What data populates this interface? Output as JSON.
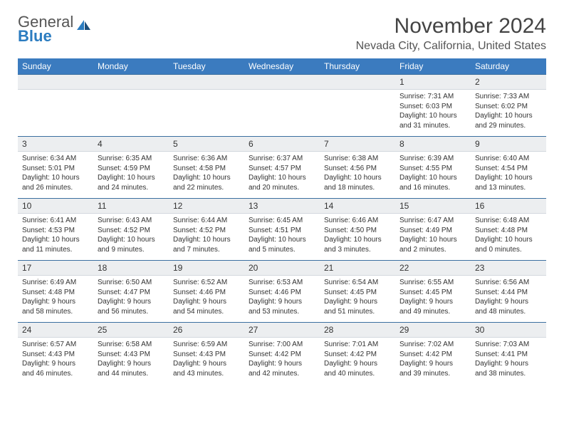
{
  "logo": {
    "text1": "General",
    "text2": "Blue"
  },
  "title": "November 2024",
  "location": "Nevada City, California, United States",
  "colors": {
    "header_bg": "#3b7bbf",
    "header_text": "#ffffff",
    "daynum_bg": "#eceef0",
    "border_top": "#3b6fa0",
    "text": "#333333"
  },
  "day_names": [
    "Sunday",
    "Monday",
    "Tuesday",
    "Wednesday",
    "Thursday",
    "Friday",
    "Saturday"
  ],
  "weeks": [
    {
      "nums": [
        "",
        "",
        "",
        "",
        "",
        "1",
        "2"
      ],
      "cells": [
        null,
        null,
        null,
        null,
        null,
        {
          "sr": "7:31 AM",
          "ss": "6:03 PM",
          "dl": "10 hours and 31 minutes."
        },
        {
          "sr": "7:33 AM",
          "ss": "6:02 PM",
          "dl": "10 hours and 29 minutes."
        }
      ]
    },
    {
      "nums": [
        "3",
        "4",
        "5",
        "6",
        "7",
        "8",
        "9"
      ],
      "cells": [
        {
          "sr": "6:34 AM",
          "ss": "5:01 PM",
          "dl": "10 hours and 26 minutes."
        },
        {
          "sr": "6:35 AM",
          "ss": "4:59 PM",
          "dl": "10 hours and 24 minutes."
        },
        {
          "sr": "6:36 AM",
          "ss": "4:58 PM",
          "dl": "10 hours and 22 minutes."
        },
        {
          "sr": "6:37 AM",
          "ss": "4:57 PM",
          "dl": "10 hours and 20 minutes."
        },
        {
          "sr": "6:38 AM",
          "ss": "4:56 PM",
          "dl": "10 hours and 18 minutes."
        },
        {
          "sr": "6:39 AM",
          "ss": "4:55 PM",
          "dl": "10 hours and 16 minutes."
        },
        {
          "sr": "6:40 AM",
          "ss": "4:54 PM",
          "dl": "10 hours and 13 minutes."
        }
      ]
    },
    {
      "nums": [
        "10",
        "11",
        "12",
        "13",
        "14",
        "15",
        "16"
      ],
      "cells": [
        {
          "sr": "6:41 AM",
          "ss": "4:53 PM",
          "dl": "10 hours and 11 minutes."
        },
        {
          "sr": "6:43 AM",
          "ss": "4:52 PM",
          "dl": "10 hours and 9 minutes."
        },
        {
          "sr": "6:44 AM",
          "ss": "4:52 PM",
          "dl": "10 hours and 7 minutes."
        },
        {
          "sr": "6:45 AM",
          "ss": "4:51 PM",
          "dl": "10 hours and 5 minutes."
        },
        {
          "sr": "6:46 AM",
          "ss": "4:50 PM",
          "dl": "10 hours and 3 minutes."
        },
        {
          "sr": "6:47 AM",
          "ss": "4:49 PM",
          "dl": "10 hours and 2 minutes."
        },
        {
          "sr": "6:48 AM",
          "ss": "4:48 PM",
          "dl": "10 hours and 0 minutes."
        }
      ]
    },
    {
      "nums": [
        "17",
        "18",
        "19",
        "20",
        "21",
        "22",
        "23"
      ],
      "cells": [
        {
          "sr": "6:49 AM",
          "ss": "4:48 PM",
          "dl": "9 hours and 58 minutes."
        },
        {
          "sr": "6:50 AM",
          "ss": "4:47 PM",
          "dl": "9 hours and 56 minutes."
        },
        {
          "sr": "6:52 AM",
          "ss": "4:46 PM",
          "dl": "9 hours and 54 minutes."
        },
        {
          "sr": "6:53 AM",
          "ss": "4:46 PM",
          "dl": "9 hours and 53 minutes."
        },
        {
          "sr": "6:54 AM",
          "ss": "4:45 PM",
          "dl": "9 hours and 51 minutes."
        },
        {
          "sr": "6:55 AM",
          "ss": "4:45 PM",
          "dl": "9 hours and 49 minutes."
        },
        {
          "sr": "6:56 AM",
          "ss": "4:44 PM",
          "dl": "9 hours and 48 minutes."
        }
      ]
    },
    {
      "nums": [
        "24",
        "25",
        "26",
        "27",
        "28",
        "29",
        "30"
      ],
      "cells": [
        {
          "sr": "6:57 AM",
          "ss": "4:43 PM",
          "dl": "9 hours and 46 minutes."
        },
        {
          "sr": "6:58 AM",
          "ss": "4:43 PM",
          "dl": "9 hours and 44 minutes."
        },
        {
          "sr": "6:59 AM",
          "ss": "4:43 PM",
          "dl": "9 hours and 43 minutes."
        },
        {
          "sr": "7:00 AM",
          "ss": "4:42 PM",
          "dl": "9 hours and 42 minutes."
        },
        {
          "sr": "7:01 AM",
          "ss": "4:42 PM",
          "dl": "9 hours and 40 minutes."
        },
        {
          "sr": "7:02 AM",
          "ss": "4:42 PM",
          "dl": "9 hours and 39 minutes."
        },
        {
          "sr": "7:03 AM",
          "ss": "4:41 PM",
          "dl": "9 hours and 38 minutes."
        }
      ]
    }
  ],
  "labels": {
    "sunrise": "Sunrise:",
    "sunset": "Sunset:",
    "daylight": "Daylight:"
  }
}
